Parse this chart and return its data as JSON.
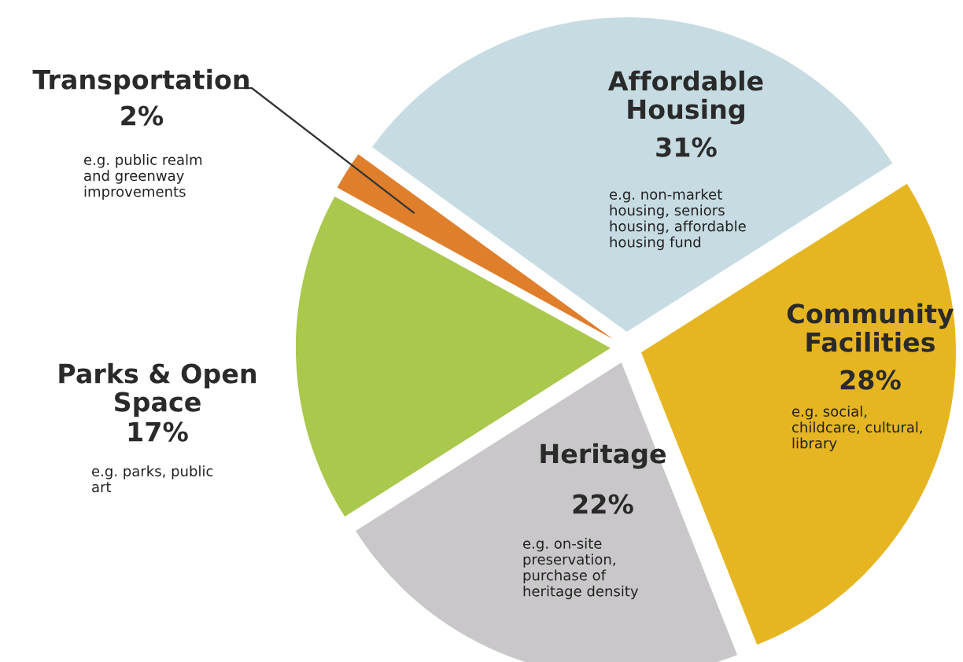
{
  "chart_data": {
    "type": "pie",
    "categories": [
      "Affordable\nHousing",
      "Community\nFacilities",
      "Heritage",
      "Parks & Open\nSpace",
      "Transportation"
    ],
    "values": [
      31,
      28,
      22,
      17,
      2
    ],
    "value_labels": [
      "31%",
      "28%",
      "22%",
      "17%",
      "2%"
    ],
    "colors": [
      "#c6dce2",
      "#e6b522",
      "#c9c7c9",
      "#a9c84c",
      "#df7f2c"
    ],
    "annotations": [
      "e.g. non-market\nhousing, seniors\nhousing, affordable\nhousing fund",
      "e.g. social,\nchildcare, cultural,\nlibrary",
      "e.g. on-site\npreservation,\npurchase of\nheritage density",
      "e.g. parks, public\nart",
      "e.g. public realm\nand greenway\nimprovements"
    ]
  }
}
